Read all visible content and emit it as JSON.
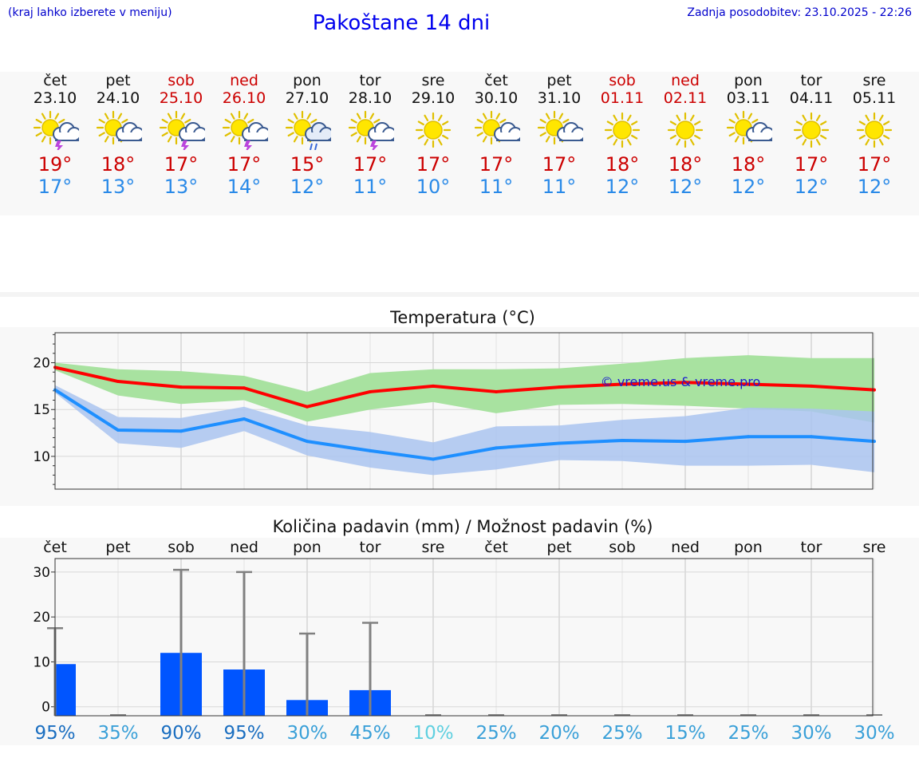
{
  "header": {
    "note": "(kraj lahko izberete v meniju)",
    "title": "Pakoštane 14 dni",
    "updated": "Zadnja posodobitev: 23.10.2025 - 22:26"
  },
  "colors": {
    "weekend": "#cc0000",
    "high_temp": "#cc0000",
    "low_temp": "#2a8ae8",
    "high_line": "#ff0000",
    "high_band": "#a8e2a0",
    "low_line": "#1e8fff",
    "low_band": "#aac4f0",
    "precip_bar": "#0055ff"
  },
  "days": [
    {
      "name": "čet",
      "date": "23.10",
      "weekend": false,
      "icon": "sun-cloud-lightning-icon",
      "hi": "19°",
      "lo": "17°"
    },
    {
      "name": "pet",
      "date": "24.10",
      "weekend": false,
      "icon": "sun-cloud-icon",
      "hi": "18°",
      "lo": "13°"
    },
    {
      "name": "sob",
      "date": "25.10",
      "weekend": true,
      "icon": "sun-cloud-lightning-icon",
      "hi": "17°",
      "lo": "13°"
    },
    {
      "name": "ned",
      "date": "26.10",
      "weekend": true,
      "icon": "sun-cloud-lightning-icon",
      "hi": "17°",
      "lo": "14°"
    },
    {
      "name": "pon",
      "date": "27.10",
      "weekend": false,
      "icon": "sun-cloud-rain-icon",
      "hi": "15°",
      "lo": "12°"
    },
    {
      "name": "tor",
      "date": "28.10",
      "weekend": false,
      "icon": "sun-cloud-lightning-icon",
      "hi": "17°",
      "lo": "11°"
    },
    {
      "name": "sre",
      "date": "29.10",
      "weekend": false,
      "icon": "sun-icon",
      "hi": "17°",
      "lo": "10°"
    },
    {
      "name": "čet",
      "date": "30.10",
      "weekend": false,
      "icon": "sun-cloud-icon",
      "hi": "17°",
      "lo": "11°"
    },
    {
      "name": "pet",
      "date": "31.10",
      "weekend": false,
      "icon": "sun-cloud-icon",
      "hi": "17°",
      "lo": "11°"
    },
    {
      "name": "sob",
      "date": "01.11",
      "weekend": true,
      "icon": "sun-icon",
      "hi": "18°",
      "lo": "12°"
    },
    {
      "name": "ned",
      "date": "02.11",
      "weekend": true,
      "icon": "sun-icon",
      "hi": "18°",
      "lo": "12°"
    },
    {
      "name": "pon",
      "date": "03.11",
      "weekend": false,
      "icon": "sun-cloud-icon",
      "hi": "18°",
      "lo": "12°"
    },
    {
      "name": "tor",
      "date": "04.11",
      "weekend": false,
      "icon": "sun-icon",
      "hi": "17°",
      "lo": "12°"
    },
    {
      "name": "sre",
      "date": "05.11",
      "weekend": false,
      "icon": "sun-icon",
      "hi": "17°",
      "lo": "12°"
    }
  ],
  "chart_data": [
    {
      "type": "line",
      "title": "Temperatura (°C)",
      "x": [
        0,
        1,
        2,
        3,
        4,
        5,
        6,
        7,
        8,
        9,
        10,
        11,
        12,
        13
      ],
      "ylim": [
        6.5,
        23.2
      ],
      "yticks": [
        10,
        15,
        20
      ],
      "grid": true,
      "watermark": "© vreme.us & vreme.pro",
      "series": [
        {
          "values": [
            19.5,
            18.0,
            17.4,
            17.3,
            15.3,
            16.9,
            17.5,
            16.9,
            17.4,
            17.7,
            17.9,
            17.7,
            17.5,
            17.1
          ],
          "band_low": [
            19.2,
            16.5,
            15.6,
            16.0,
            13.7,
            15.0,
            15.8,
            14.6,
            15.5,
            15.6,
            15.4,
            15.1,
            14.8,
            13.6
          ],
          "band_high": [
            20.0,
            19.3,
            19.1,
            18.6,
            16.9,
            18.9,
            19.3,
            19.3,
            19.4,
            19.9,
            20.5,
            20.8,
            20.5,
            20.5
          ]
        },
        {
          "values": [
            17.1,
            12.8,
            12.7,
            14.0,
            11.6,
            10.6,
            9.7,
            10.9,
            11.4,
            11.7,
            11.6,
            12.1,
            12.1,
            11.6
          ],
          "band_low": [
            16.8,
            11.4,
            10.9,
            12.7,
            10.1,
            8.8,
            8.0,
            8.6,
            9.6,
            9.5,
            9.0,
            9.0,
            9.1,
            8.3
          ],
          "band_high": [
            17.6,
            14.2,
            14.1,
            15.3,
            13.3,
            12.6,
            11.5,
            13.2,
            13.3,
            13.9,
            14.3,
            15.2,
            15.1,
            14.8
          ]
        }
      ]
    },
    {
      "type": "bar",
      "title": "Količina padavin (mm) / Možnost padavin (%)",
      "categories": [
        "čet",
        "pet",
        "sob",
        "ned",
        "pon",
        "tor",
        "sre",
        "čet",
        "pet",
        "sob",
        "ned",
        "pon",
        "tor",
        "sre"
      ],
      "values": [
        9.5,
        0,
        12.0,
        8.3,
        1.5,
        3.7,
        0,
        0,
        0,
        0,
        0,
        0,
        0,
        0
      ],
      "max_values": [
        17.5,
        0,
        30.5,
        30.0,
        16.3,
        18.7,
        0,
        0,
        0,
        0,
        0,
        0,
        0,
        0
      ],
      "probability": [
        "95%",
        "35%",
        "90%",
        "95%",
        "30%",
        "45%",
        "10%",
        "25%",
        "20%",
        "25%",
        "15%",
        "25%",
        "30%",
        "30%"
      ],
      "probability_colors": [
        "#1a6ec0",
        "#3aa0d8",
        "#1a6ec0",
        "#1a6ec0",
        "#3aa0d8",
        "#3aa0d8",
        "#60d0e0",
        "#3aa0d8",
        "#3aa0d8",
        "#3aa0d8",
        "#3aa0d8",
        "#3aa0d8",
        "#3aa0d8",
        "#3aa0d8"
      ],
      "ylim": [
        -2,
        33
      ],
      "yticks": [
        0,
        10,
        20,
        30
      ],
      "grid": true
    }
  ]
}
